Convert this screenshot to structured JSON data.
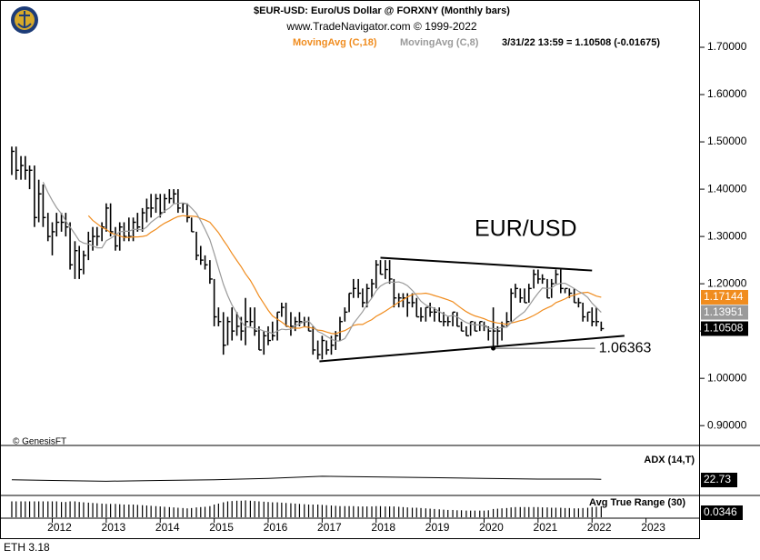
{
  "chart_data": {
    "type": "ohlc",
    "title": "$EUR-USD:  Euro/US Dollar @ FORXNY  (Monthly bars)",
    "subtitle": "www.TradeNavigator.com © 1999-2022",
    "quote": "3/31/22 13:59 = 1.10508 (-0.01675)",
    "annotation": "EUR/USD",
    "credit": "© GenesisFT",
    "footer": "ETH 3.18",
    "color": "#000000",
    "grid": false,
    "x": [
      2011.25,
      2011.33,
      2011.42,
      2011.5,
      2011.58,
      2011.67,
      2011.75,
      2011.83,
      2011.92,
      2012,
      2012.08,
      2012.17,
      2012.25,
      2012.33,
      2012.42,
      2012.5,
      2012.58,
      2012.67,
      2012.75,
      2012.83,
      2012.92,
      2013,
      2013.08,
      2013.17,
      2013.25,
      2013.33,
      2013.42,
      2013.5,
      2013.58,
      2013.67,
      2013.75,
      2013.83,
      2013.92,
      2014,
      2014.08,
      2014.17,
      2014.25,
      2014.33,
      2014.42,
      2014.5,
      2014.58,
      2014.67,
      2014.75,
      2014.83,
      2014.92,
      2015,
      2015.08,
      2015.17,
      2015.25,
      2015.33,
      2015.42,
      2015.5,
      2015.58,
      2015.67,
      2015.75,
      2015.83,
      2015.92,
      2016,
      2016.08,
      2016.17,
      2016.25,
      2016.33,
      2016.42,
      2016.5,
      2016.58,
      2016.67,
      2016.75,
      2016.83,
      2016.92,
      2017,
      2017.08,
      2017.17,
      2017.25,
      2017.33,
      2017.42,
      2017.5,
      2017.58,
      2017.67,
      2017.75,
      2017.83,
      2017.92,
      2018,
      2018.08,
      2018.17,
      2018.25,
      2018.33,
      2018.42,
      2018.5,
      2018.58,
      2018.67,
      2018.75,
      2018.83,
      2018.92,
      2019,
      2019.08,
      2019.17,
      2019.25,
      2019.33,
      2019.42,
      2019.5,
      2019.58,
      2019.67,
      2019.75,
      2019.83,
      2019.92,
      2020,
      2020.08,
      2020.17,
      2020.25,
      2020.33,
      2020.42,
      2020.5,
      2020.58,
      2020.67,
      2020.75,
      2020.83,
      2020.92,
      2021,
      2021.08,
      2021.17,
      2021.25,
      2021.33,
      2021.42,
      2021.5,
      2021.58,
      2021.67,
      2021.75,
      2021.83,
      2021.92,
      2022,
      2022.08,
      2022.17
    ],
    "high": [
      1.49,
      1.49,
      1.47,
      1.47,
      1.45,
      1.45,
      1.42,
      1.41,
      1.35,
      1.33,
      1.35,
      1.35,
      1.35,
      1.33,
      1.29,
      1.28,
      1.27,
      1.31,
      1.32,
      1.32,
      1.33,
      1.37,
      1.37,
      1.32,
      1.33,
      1.33,
      1.34,
      1.34,
      1.35,
      1.36,
      1.38,
      1.39,
      1.39,
      1.39,
      1.39,
      1.4,
      1.4,
      1.4,
      1.37,
      1.37,
      1.34,
      1.31,
      1.28,
      1.26,
      1.25,
      1.21,
      1.15,
      1.14,
      1.13,
      1.15,
      1.14,
      1.13,
      1.17,
      1.15,
      1.15,
      1.11,
      1.1,
      1.11,
      1.12,
      1.14,
      1.16,
      1.16,
      1.14,
      1.13,
      1.14,
      1.13,
      1.13,
      1.11,
      1.08,
      1.09,
      1.08,
      1.09,
      1.1,
      1.13,
      1.15,
      1.18,
      1.21,
      1.21,
      1.19,
      1.2,
      1.21,
      1.25,
      1.25,
      1.25,
      1.25,
      1.21,
      1.18,
      1.18,
      1.18,
      1.18,
      1.17,
      1.15,
      1.15,
      1.16,
      1.15,
      1.15,
      1.14,
      1.13,
      1.14,
      1.14,
      1.12,
      1.11,
      1.12,
      1.12,
      1.12,
      1.12,
      1.11,
      1.15,
      1.11,
      1.12,
      1.14,
      1.19,
      1.2,
      1.19,
      1.19,
      1.2,
      1.23,
      1.23,
      1.22,
      1.21,
      1.21,
      1.23,
      1.23,
      1.19,
      1.19,
      1.19,
      1.17,
      1.16,
      1.14,
      1.15,
      1.15,
      1.12
    ],
    "low": [
      1.43,
      1.42,
      1.42,
      1.42,
      1.4,
      1.32,
      1.33,
      1.32,
      1.29,
      1.26,
      1.3,
      1.31,
      1.3,
      1.23,
      1.21,
      1.21,
      1.22,
      1.25,
      1.27,
      1.28,
      1.29,
      1.31,
      1.3,
      1.27,
      1.27,
      1.29,
      1.29,
      1.29,
      1.31,
      1.31,
      1.33,
      1.34,
      1.35,
      1.34,
      1.35,
      1.37,
      1.37,
      1.35,
      1.35,
      1.33,
      1.31,
      1.25,
      1.24,
      1.23,
      1.2,
      1.11,
      1.11,
      1.05,
      1.07,
      1.08,
      1.09,
      1.08,
      1.07,
      1.11,
      1.09,
      1.06,
      1.05,
      1.07,
      1.08,
      1.08,
      1.13,
      1.11,
      1.09,
      1.1,
      1.11,
      1.11,
      1.1,
      1.05,
      1.04,
      1.04,
      1.05,
      1.05,
      1.06,
      1.08,
      1.12,
      1.14,
      1.17,
      1.17,
      1.15,
      1.15,
      1.17,
      1.19,
      1.22,
      1.21,
      1.2,
      1.15,
      1.15,
      1.15,
      1.13,
      1.15,
      1.13,
      1.12,
      1.12,
      1.13,
      1.12,
      1.12,
      1.11,
      1.11,
      1.11,
      1.11,
      1.1,
      1.09,
      1.09,
      1.1,
      1.1,
      1.1,
      1.08,
      1.0636,
      1.07,
      1.08,
      1.11,
      1.12,
      1.17,
      1.16,
      1.16,
      1.16,
      1.19,
      1.2,
      1.2,
      1.17,
      1.17,
      1.2,
      1.18,
      1.18,
      1.17,
      1.16,
      1.15,
      1.12,
      1.12,
      1.11,
      1.11,
      1.1
    ],
    "close": [
      1.48,
      1.44,
      1.45,
      1.44,
      1.44,
      1.34,
      1.39,
      1.34,
      1.3,
      1.31,
      1.33,
      1.33,
      1.32,
      1.24,
      1.27,
      1.23,
      1.26,
      1.29,
      1.3,
      1.3,
      1.32,
      1.36,
      1.31,
      1.28,
      1.32,
      1.3,
      1.3,
      1.33,
      1.32,
      1.35,
      1.36,
      1.36,
      1.38,
      1.35,
      1.38,
      1.38,
      1.39,
      1.36,
      1.37,
      1.34,
      1.31,
      1.26,
      1.25,
      1.24,
      1.21,
      1.13,
      1.12,
      1.07,
      1.12,
      1.1,
      1.11,
      1.1,
      1.12,
      1.12,
      1.1,
      1.06,
      1.09,
      1.08,
      1.09,
      1.14,
      1.15,
      1.11,
      1.11,
      1.12,
      1.12,
      1.12,
      1.1,
      1.06,
      1.05,
      1.08,
      1.06,
      1.07,
      1.09,
      1.12,
      1.14,
      1.18,
      1.19,
      1.18,
      1.16,
      1.19,
      1.2,
      1.24,
      1.22,
      1.23,
      1.21,
      1.17,
      1.17,
      1.17,
      1.16,
      1.16,
      1.13,
      1.13,
      1.15,
      1.14,
      1.14,
      1.12,
      1.12,
      1.12,
      1.14,
      1.11,
      1.1,
      1.09,
      1.12,
      1.1,
      1.12,
      1.11,
      1.1,
      1.1,
      1.1,
      1.11,
      1.12,
      1.18,
      1.19,
      1.17,
      1.16,
      1.19,
      1.22,
      1.21,
      1.21,
      1.17,
      1.2,
      1.22,
      1.19,
      1.19,
      1.18,
      1.16,
      1.16,
      1.13,
      1.14,
      1.12,
      1.12,
      1.10508
    ],
    "series": [
      {
        "name": "MovingAvg (C,18)",
        "color": "#f08c1e",
        "values": [
          null,
          null,
          null,
          null,
          null,
          null,
          null,
          null,
          null,
          null,
          null,
          null,
          null,
          null,
          null,
          null,
          null,
          1.344,
          1.334,
          1.327,
          1.319,
          1.315,
          1.308,
          1.304,
          1.301,
          1.298,
          1.298,
          1.299,
          1.299,
          1.3,
          1.302,
          1.309,
          1.315,
          1.322,
          1.328,
          1.333,
          1.338,
          1.342,
          1.344,
          1.343,
          1.343,
          1.342,
          1.338,
          1.335,
          1.33,
          1.319,
          1.308,
          1.292,
          1.279,
          1.264,
          1.249,
          1.236,
          1.221,
          1.207,
          1.191,
          1.174,
          1.158,
          1.144,
          1.132,
          1.125,
          1.119,
          1.112,
          1.107,
          1.106,
          1.106,
          1.109,
          1.108,
          1.106,
          1.102,
          1.101,
          1.098,
          1.095,
          1.094,
          1.098,
          1.101,
          1.106,
          1.112,
          1.114,
          1.114,
          1.119,
          1.124,
          1.131,
          1.136,
          1.142,
          1.148,
          1.154,
          1.161,
          1.166,
          1.172,
          1.177,
          1.179,
          1.179,
          1.18,
          1.178,
          1.175,
          1.172,
          1.169,
          1.166,
          1.162,
          1.155,
          1.148,
          1.141,
          1.136,
          1.132,
          1.129,
          1.126,
          1.122,
          1.119,
          1.117,
          1.116,
          1.114,
          1.117,
          1.119,
          1.122,
          1.124,
          1.128,
          1.133,
          1.138,
          1.144,
          1.149,
          1.153,
          1.16,
          1.164,
          1.168,
          1.173,
          1.176,
          1.179,
          1.181,
          1.182,
          1.178,
          1.174,
          1.17144
        ]
      },
      {
        "name": "MovingAvg (C,8)",
        "color": "#9a9a9a",
        "values": [
          null,
          null,
          null,
          null,
          null,
          null,
          null,
          1.415,
          1.393,
          1.376,
          1.361,
          1.348,
          1.333,
          1.32,
          1.305,
          1.291,
          1.286,
          1.284,
          1.28,
          1.276,
          1.276,
          1.291,
          1.296,
          1.303,
          1.31,
          1.311,
          1.311,
          1.315,
          1.315,
          1.314,
          1.32,
          1.33,
          1.338,
          1.344,
          1.354,
          1.36,
          1.369,
          1.37,
          1.371,
          1.369,
          1.36,
          1.349,
          1.333,
          1.315,
          1.293,
          1.264,
          1.233,
          1.199,
          1.175,
          1.155,
          1.138,
          1.12,
          1.109,
          1.108,
          1.105,
          1.104,
          1.1,
          1.098,
          1.095,
          1.1,
          1.104,
          1.103,
          1.104,
          1.111,
          1.115,
          1.12,
          1.121,
          1.111,
          1.099,
          1.095,
          1.089,
          1.083,
          1.079,
          1.079,
          1.084,
          1.099,
          1.116,
          1.129,
          1.141,
          1.156,
          1.17,
          1.185,
          1.195,
          1.201,
          1.204,
          1.203,
          1.204,
          1.201,
          1.196,
          1.186,
          1.175,
          1.163,
          1.155,
          1.151,
          1.148,
          1.141,
          1.136,
          1.131,
          1.133,
          1.13,
          1.124,
          1.118,
          1.115,
          1.113,
          1.113,
          1.111,
          1.106,
          1.105,
          1.105,
          1.108,
          1.108,
          1.118,
          1.126,
          1.134,
          1.141,
          1.153,
          1.168,
          1.18,
          1.191,
          1.19,
          1.191,
          1.198,
          1.201,
          1.201,
          1.196,
          1.19,
          1.184,
          1.179,
          1.171,
          1.159,
          1.15,
          1.13951
        ]
      }
    ],
    "trendlines": [
      {
        "x": [
          2018.08,
          2022.0
        ],
        "y": [
          1.255,
          1.228
        ]
      },
      {
        "x": [
          2016.95,
          2022.6
        ],
        "y": [
          1.036,
          1.09
        ]
      }
    ],
    "support": {
      "x": 2020.17,
      "y": 1.06363
    },
    "xlim": [
      2011.2,
      2024.0
    ],
    "xticks": [
      2012,
      2013,
      2014,
      2015,
      2016,
      2017,
      2018,
      2019,
      2020,
      2021,
      2022,
      2023
    ],
    "ylim": [
      0.86,
      1.8
    ],
    "yticks": [
      {
        "value": 0.9,
        "label": "0.90000"
      },
      {
        "value": 1.0,
        "label": "1.00000"
      },
      {
        "value": 1.1,
        "label": "1.10000"
      },
      {
        "value": 1.2,
        "label": "1.20000"
      },
      {
        "value": 1.3,
        "label": "1.30000"
      },
      {
        "value": 1.4,
        "label": "1.40000"
      },
      {
        "value": 1.5,
        "label": "1.50000"
      },
      {
        "value": 1.6,
        "label": "1.60000"
      },
      {
        "value": 1.7,
        "label": "1.70000"
      }
    ],
    "adx": {
      "name": "ADX (14,T)",
      "color": "#000000",
      "ylim": [
        0,
        60
      ],
      "x": [
        2011.25,
        2012,
        2013,
        2014,
        2015,
        2016,
        2017,
        2018,
        2019,
        2020,
        2021,
        2022,
        2022.17
      ],
      "values": [
        22,
        21,
        20,
        21,
        22,
        24,
        27,
        26,
        25,
        24,
        23,
        23,
        22.73
      ]
    },
    "atr": {
      "name": "Avg True Range (30)",
      "color": "#000000",
      "ylim": [
        0,
        0.06
      ],
      "values": [
        0.05,
        0.05,
        0.05,
        0.05,
        0.05,
        0.05,
        0.05,
        0.05,
        0.05,
        0.05,
        0.05,
        0.048,
        0.048,
        0.05,
        0.05,
        0.048,
        0.047,
        0.046,
        0.045,
        0.044,
        0.043,
        0.042,
        0.042,
        0.042,
        0.041,
        0.04,
        0.04,
        0.04,
        0.039,
        0.038,
        0.037,
        0.036,
        0.035,
        0.034,
        0.033,
        0.032,
        0.031,
        0.03,
        0.029,
        0.028,
        0.029,
        0.031,
        0.032,
        0.033,
        0.035,
        0.04,
        0.043,
        0.047,
        0.05,
        0.051,
        0.052,
        0.052,
        0.053,
        0.052,
        0.051,
        0.05,
        0.049,
        0.048,
        0.047,
        0.047,
        0.046,
        0.045,
        0.044,
        0.043,
        0.042,
        0.041,
        0.04,
        0.04,
        0.04,
        0.039,
        0.038,
        0.037,
        0.036,
        0.035,
        0.035,
        0.035,
        0.035,
        0.034,
        0.034,
        0.034,
        0.034,
        0.035,
        0.035,
        0.034,
        0.034,
        0.034,
        0.033,
        0.032,
        0.031,
        0.03,
        0.03,
        0.029,
        0.028,
        0.027,
        0.026,
        0.025,
        0.024,
        0.023,
        0.023,
        0.022,
        0.022,
        0.021,
        0.021,
        0.021,
        0.021,
        0.021,
        0.022,
        0.026,
        0.027,
        0.028,
        0.029,
        0.031,
        0.032,
        0.032,
        0.032,
        0.032,
        0.032,
        0.032,
        0.031,
        0.031,
        0.03,
        0.03,
        0.03,
        0.029,
        0.029,
        0.028,
        0.028,
        0.029,
        0.03,
        0.032,
        0.033,
        0.0346
      ]
    }
  }
}
